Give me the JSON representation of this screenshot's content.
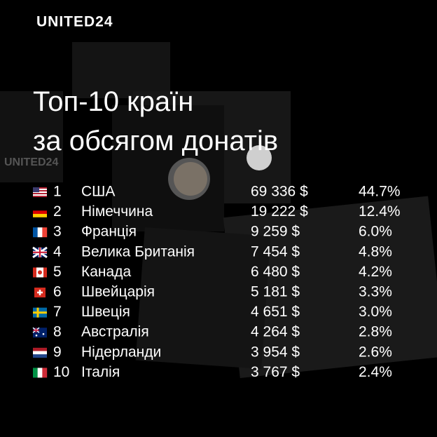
{
  "header": {
    "logo": "UNITED24",
    "title_lines": [
      "Топ-10 країн",
      "за обсягом донатів"
    ],
    "watermark": "UNITED24"
  },
  "table": {
    "rows": [
      [
        "1",
        "США",
        "69 336 $",
        "44.7%"
      ],
      [
        "2",
        "Німеччина",
        "19 222 $",
        "12.4%"
      ],
      [
        "3",
        "Франція",
        "9 259 $",
        "6.0%"
      ],
      [
        "4",
        "Велика Британія",
        "7 454 $",
        "4.8%"
      ],
      [
        "5",
        "Канада",
        "6 480 $",
        "4.2%"
      ],
      [
        "6",
        "Швейцарія",
        "5 181 $",
        "3.3%"
      ],
      [
        "7",
        "Швеція",
        "4 651 $",
        "3.0%"
      ],
      [
        "8",
        "Австралія",
        "4 264 $",
        "2.8%"
      ],
      [
        "9",
        "Нідерланди",
        "3 954 $",
        "2.6%"
      ],
      [
        "10",
        "Італія",
        "3 767 $",
        "2.4%"
      ]
    ]
  }
}
